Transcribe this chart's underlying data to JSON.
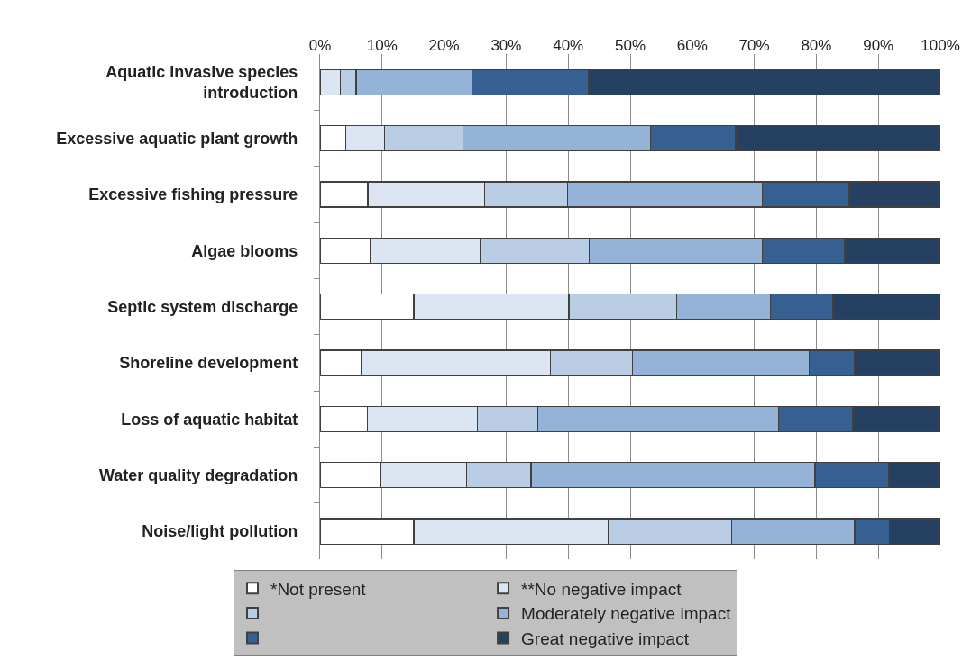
{
  "chart_data": {
    "type": "bar",
    "orientation": "horizontal",
    "stacked": true,
    "categories": [
      "Aquatic invasive species introduction",
      "Excessive aquatic plant growth",
      "Excessive fishing pressure",
      "Algae blooms",
      "Septic system discharge",
      "Shoreline development",
      "Loss of aquatic habitat",
      "Water quality degradation",
      "Noise/light pollution"
    ],
    "series": [
      {
        "name": "*Not present",
        "color": "#ffffff",
        "values": [
          0,
          4.1,
          7.7,
          8.1,
          15.1,
          6.6,
          7.6,
          9.8,
          15.1
        ]
      },
      {
        "name": "**No negative impact",
        "color": "#dce6f2",
        "values": [
          3.3,
          6.3,
          18.8,
          17.7,
          25.0,
          30.5,
          17.8,
          13.8,
          31.4
        ]
      },
      {
        "color": "#b9cde5",
        "values": [
          2.5,
          12.6,
          13.4,
          17.6,
          17.4,
          13.3,
          9.7,
          10.4,
          19.9
        ]
      },
      {
        "name": "Moderately negative impact",
        "color": "#95b3d7",
        "values": [
          18.7,
          30.3,
          31.4,
          27.9,
          15.1,
          28.5,
          38.8,
          45.8,
          19.8
        ]
      },
      {
        "color": "#366092",
        "values": [
          18.7,
          13.7,
          14.0,
          13.3,
          10.0,
          7.2,
          12.0,
          11.8,
          5.6
        ]
      },
      {
        "name": "Great negative impact",
        "color": "#254061",
        "values": [
          56.8,
          33.0,
          14.7,
          15.4,
          17.4,
          13.9,
          14.1,
          8.4,
          8.2
        ]
      }
    ],
    "xlim": [
      0,
      100
    ],
    "xticks": [
      {
        "value": 0,
        "label": "0%"
      },
      {
        "value": 10,
        "label": "10%"
      },
      {
        "value": 20,
        "label": "20%"
      },
      {
        "value": 30,
        "label": "30%"
      },
      {
        "value": 40,
        "label": "40%"
      },
      {
        "value": 50,
        "label": "50%"
      },
      {
        "value": 60,
        "label": "60%"
      },
      {
        "value": 70,
        "label": "70%"
      },
      {
        "value": 80,
        "label": "80%"
      },
      {
        "value": 90,
        "label": "90%"
      },
      {
        "value": 100,
        "label": "100%"
      }
    ],
    "grid": "x",
    "legend": "bottom"
  }
}
